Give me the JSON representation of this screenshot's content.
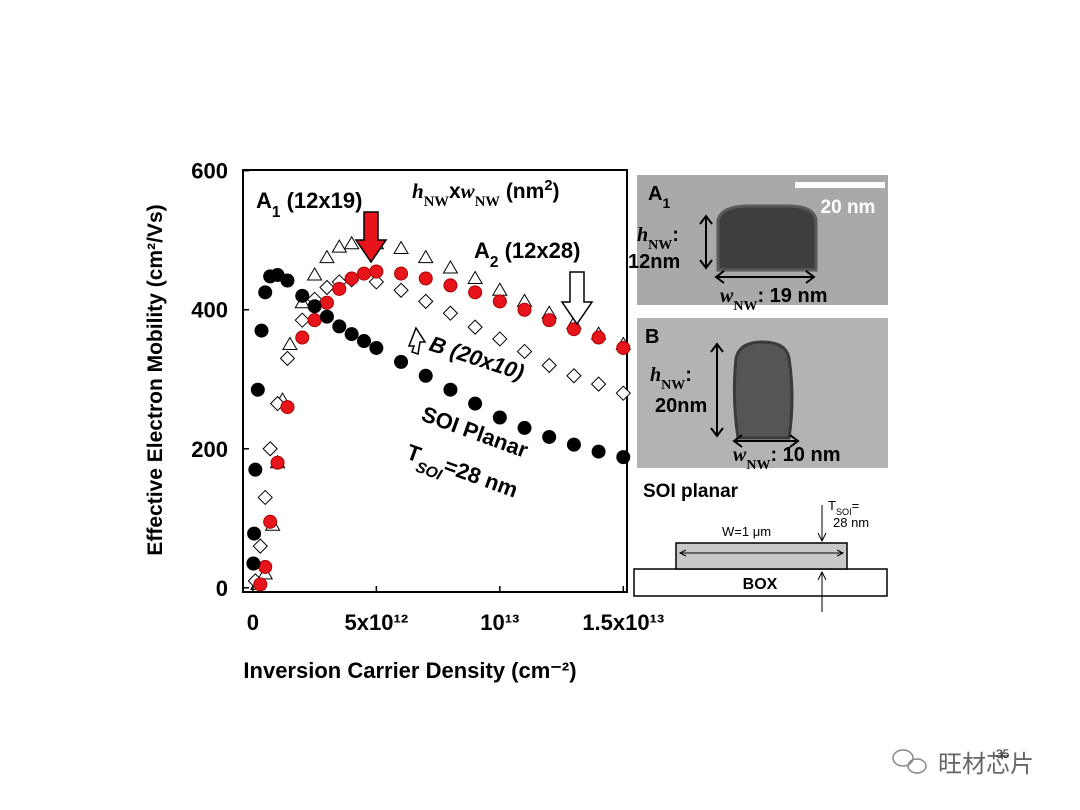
{
  "chart_data": {
    "type": "scatter",
    "xlabel": "Inversion Carrier Density (cm⁻²)",
    "ylabel": "Effective Electron Mobility (cm²/Vs)",
    "xlim": [
      -400000000000.0,
      15150000000000.0
    ],
    "ylim": [
      -6,
      601
    ],
    "xticks": [
      0,
      {
        "value": 5000000000000.0,
        "label": "5x10¹²"
      },
      {
        "value": 10000000000000.0,
        "label": "10¹³"
      },
      {
        "value": 15000000000000.0,
        "label": "1.5x10¹³"
      }
    ],
    "yticks": [
      0,
      200,
      400,
      600
    ],
    "series": [
      {
        "marker": "triangle",
        "color": "#000000",
        "filled": false,
        "x": [
          200000000000.0,
          500000000000.0,
          800000000000.0,
          1000000000000.0,
          1200000000000.0,
          1500000000000.0,
          2000000000000.0,
          2500000000000.0,
          3000000000000.0,
          3500000000000.0,
          4000000000000.0,
          5000000000000.0,
          6000000000000.0,
          7000000000000.0,
          8000000000000.0,
          9000000000000.0,
          10000000000000.0,
          11000000000000.0,
          12000000000000.0,
          13000000000000.0,
          14000000000000.0,
          15000000000000.0
        ],
        "values": [
          5,
          20,
          90,
          180,
          270,
          350,
          410,
          450,
          475,
          490,
          495,
          495,
          488,
          475,
          460,
          445,
          428,
          412,
          395,
          380,
          365,
          350
        ]
      },
      {
        "marker": "diamond",
        "color": "#000000",
        "filled": false,
        "x": [
          100000000000.0,
          300000000000.0,
          500000000000.0,
          700000000000.0,
          1000000000000.0,
          1400000000000.0,
          2000000000000.0,
          2500000000000.0,
          3000000000000.0,
          3500000000000.0,
          4000000000000.0,
          5000000000000.0,
          6000000000000.0,
          7000000000000.0,
          8000000000000.0,
          9000000000000.0,
          10000000000000.0,
          11000000000000.0,
          12000000000000.0,
          13000000000000.0,
          14000000000000.0,
          15000000000000.0
        ],
        "values": [
          10,
          60,
          130,
          200,
          265,
          330,
          385,
          415,
          432,
          440,
          443,
          440,
          428,
          412,
          395,
          375,
          358,
          340,
          320,
          305,
          293,
          280
        ]
      },
      {
        "marker": "circle",
        "color": "#e8141c",
        "filled": true,
        "x": [
          300000000000.0,
          500000000000.0,
          700000000000.0,
          1000000000000.0,
          1400000000000.0,
          2000000000000.0,
          2500000000000.0,
          3000000000000.0,
          3500000000000.0,
          4000000000000.0,
          4500000000000.0,
          5000000000000.0,
          6000000000000.0,
          7000000000000.0,
          8000000000000.0,
          9000000000000.0,
          10000000000000.0,
          11000000000000.0,
          12000000000000.0,
          13000000000000.0,
          14000000000000.0,
          15000000000000.0
        ],
        "values": [
          5,
          30,
          95,
          180,
          260,
          360,
          385,
          410,
          430,
          445,
          452,
          455,
          452,
          445,
          435,
          425,
          412,
          400,
          385,
          372,
          360,
          345
        ]
      },
      {
        "marker": "circle",
        "color": "#000000",
        "filled": true,
        "x": [
          20000000000.0,
          50000000000.0,
          100000000000.0,
          200000000000.0,
          350000000000.0,
          500000000000.0,
          700000000000.0,
          1000000000000.0,
          1400000000000.0,
          2000000000000.0,
          2500000000000.0,
          3000000000000.0,
          3500000000000.0,
          4000000000000.0,
          4500000000000.0,
          5000000000000.0,
          6000000000000.0,
          7000000000000.0,
          8000000000000.0,
          9000000000000.0,
          10000000000000.0,
          11000000000000.0,
          12000000000000.0,
          13000000000000.0,
          14000000000000.0,
          15000000000000.0
        ],
        "values": [
          35,
          78,
          170,
          285,
          370,
          425,
          448,
          450,
          442,
          420,
          405,
          390,
          376,
          365,
          355,
          345,
          325,
          305,
          285,
          265,
          245,
          230,
          217,
          206,
          196,
          188
        ]
      }
    ],
    "annotations": [
      [
        "A",
        "1",
        " (12x19)"
      ],
      [
        "h",
        "NW",
        "x",
        "w",
        "NW",
        " (nm",
        "2",
        ")"
      ],
      [
        "A",
        "2",
        " (12x28)"
      ],
      "B (20x10)",
      "SOI Planar",
      [
        "T",
        "SOI",
        "=28 nm"
      ]
    ]
  },
  "panels": {
    "a1": {
      "label": [
        "A",
        "1"
      ],
      "scale": "20 nm",
      "h": [
        "h",
        "NW",
        ":"
      ],
      "h_value": "12nm",
      "w": [
        "w",
        "NW",
        ": 19 nm"
      ]
    },
    "b": {
      "label": "B",
      "h": [
        "h",
        "NW",
        ":"
      ],
      "h_value": "20nm",
      "w": [
        "w",
        "NW",
        ": 10 nm"
      ]
    },
    "soi": {
      "title": "SOI planar",
      "width": "W=1 μm",
      "t": [
        "T",
        "SOI",
        "="
      ],
      "t_value": "28 nm",
      "box": "BOX"
    }
  },
  "watermark": "旺材芯片",
  "page_number": "35"
}
